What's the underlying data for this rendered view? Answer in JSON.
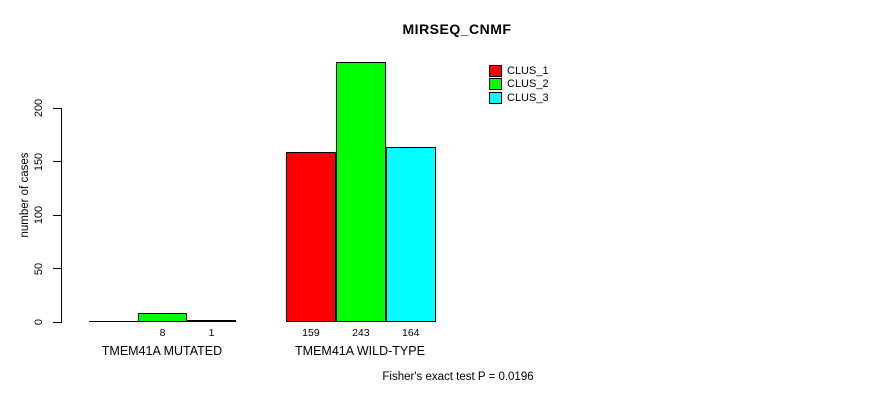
{
  "chart_data": {
    "type": "bar",
    "title": "MIRSEQ_CNMF",
    "ylabel": "number of cases",
    "xlabel": "",
    "categories": [
      "TMEM41A MUTATED",
      "TMEM41A WILD-TYPE"
    ],
    "series": [
      {
        "name": "CLUS_1",
        "color": "#ff0000",
        "values": [
          0,
          159
        ]
      },
      {
        "name": "CLUS_2",
        "color": "#00ff00",
        "values": [
          8,
          243
        ]
      },
      {
        "name": "CLUS_3",
        "color": "#00ffff",
        "values": [
          1,
          164
        ]
      }
    ],
    "bar_value_labels": [
      [
        "",
        "8",
        "1"
      ],
      [
        "159",
        "243",
        "164"
      ]
    ],
    "ytick_labels": [
      "0",
      "50",
      "100",
      "150",
      "200"
    ],
    "ytick_values": [
      0,
      50,
      100,
      150,
      200
    ],
    "ylim": [
      0,
      250
    ],
    "grid": false,
    "legend": {
      "position": "top-right",
      "entries": [
        {
          "label": "CLUS_1",
          "color": "#ff0000"
        },
        {
          "label": "CLUS_2",
          "color": "#00ff00"
        },
        {
          "label": "CLUS_3",
          "color": "#00ffff"
        }
      ]
    },
    "caption": "Fisher's exact test P = 0.0196"
  },
  "colors": {
    "axis": "#000000",
    "background": "#ffffff",
    "clus1": "#ff0000",
    "clus2": "#00ff00",
    "clus3": "#00ffff"
  }
}
